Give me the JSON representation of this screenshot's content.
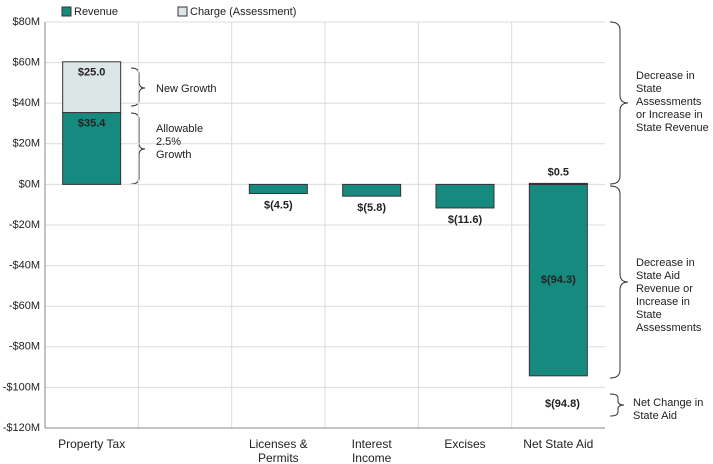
{
  "chart_data": {
    "type": "stacked_bar",
    "categories": [
      "Property Tax",
      null,
      "Licenses & Permits",
      "Interest Income",
      "Excises",
      "Net State Aid"
    ],
    "series": [
      {
        "name": "Revenue",
        "color": "#178a80",
        "values": [
          35.4,
          null,
          -4.5,
          -5.8,
          -11.6,
          -94.3
        ],
        "value_labels": [
          "$35.4",
          null,
          "$(4.5)",
          "$(5.8)",
          "$(11.6)",
          "$(94.3)"
        ]
      },
      {
        "name": "Charge (Assessment)",
        "color": "#dde6e6",
        "values": [
          25.0,
          null,
          null,
          null,
          null,
          0.5
        ],
        "value_labels": [
          "$25.0",
          null,
          null,
          null,
          null,
          "$0.5"
        ]
      }
    ],
    "ylim": [
      -120,
      80
    ],
    "yticks": [
      {
        "value": -120,
        "label": "-$120M"
      },
      {
        "value": -100,
        "label": "-$100M"
      },
      {
        "value": -80,
        "label": "-$80M"
      },
      {
        "value": -60,
        "label": "-$60M"
      },
      {
        "value": -40,
        "label": "-$40M"
      },
      {
        "value": -20,
        "label": "-$20M"
      },
      {
        "value": 0,
        "label": "$0M"
      },
      {
        "value": 20,
        "label": "$20M"
      },
      {
        "value": 40,
        "label": "$40M"
      },
      {
        "value": 60,
        "label": "$60M"
      },
      {
        "value": 80,
        "label": "$80M"
      }
    ],
    "grid": true,
    "legend": "top",
    "annotations": [
      "New Growth",
      "Allowable 2.5% Growth",
      "Decrease in State Assessments or Increase in State Revenue",
      "Decrease in State Aid Revenue or Increase in State Assessments",
      "Net Change in State Aid",
      "$(94.8)"
    ]
  }
}
